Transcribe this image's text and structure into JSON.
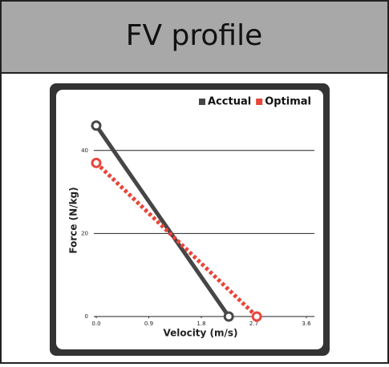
{
  "header": {
    "title": "FV profile"
  },
  "chart_data": {
    "type": "line",
    "x_label": "Velocity (m/s)",
    "y_label": "Force (N/kg)",
    "series": [
      {
        "name": "Acctual",
        "color": "#464646",
        "dashed": false,
        "x": [
          0,
          2.27
        ],
        "values": [
          46,
          0
        ]
      },
      {
        "name": "Optimal",
        "color": "#e8453a",
        "dashed": true,
        "x": [
          0,
          2.75
        ],
        "values": [
          37,
          0
        ]
      }
    ],
    "xlim": [
      0,
      3.6
    ],
    "ylim": [
      0,
      50
    ],
    "xticks": [
      {
        "value": 0,
        "label": "0.0"
      },
      0.9,
      1.8,
      2.7,
      3.6
    ],
    "yticks": [
      0,
      20,
      40
    ],
    "grid": true,
    "legend": "top-right"
  }
}
